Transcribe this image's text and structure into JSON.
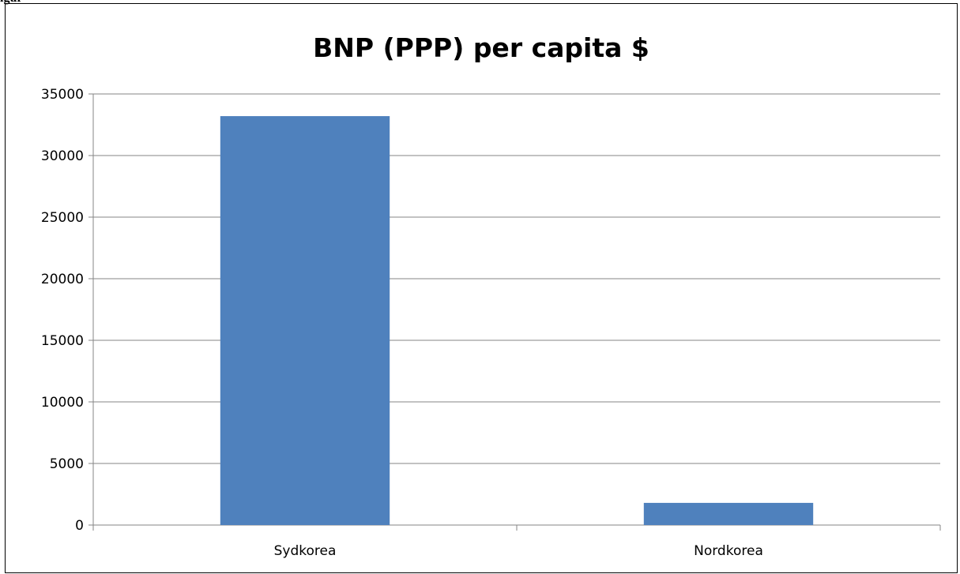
{
  "figure_label": "igur",
  "chart_data": {
    "type": "bar",
    "title": "BNP (PPP) per capita $",
    "xlabel": "",
    "ylabel": "",
    "categories": [
      "Sydkorea",
      "Nordkorea"
    ],
    "values": [
      33200,
      1800
    ],
    "ylim": [
      0,
      35000
    ],
    "yticks": [
      0,
      5000,
      10000,
      15000,
      20000,
      25000,
      30000,
      35000
    ],
    "grid": true,
    "legend": "none",
    "bar_color": "#4f81bd"
  }
}
